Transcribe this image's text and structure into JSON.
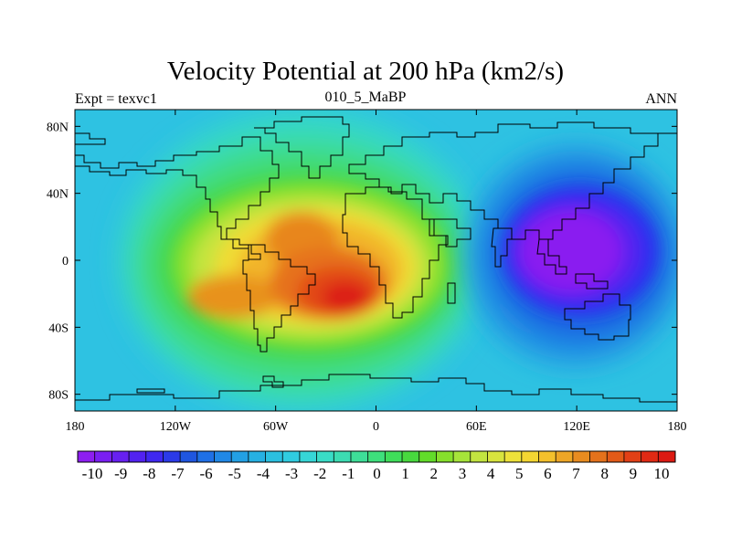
{
  "figure": {
    "title": "Velocity Potential at 200 hPa (km2/s)",
    "left_label": "Expt = texvc1",
    "center_label": "010_5_MaBP",
    "right_label": "ANN"
  },
  "map": {
    "projection": "cylindrical equidistant",
    "lon_range": [
      -180,
      180
    ],
    "lat_range": [
      -90,
      90
    ],
    "lon_ticks": [
      {
        "value": -180,
        "label": "180"
      },
      {
        "value": -120,
        "label": "120W"
      },
      {
        "value": -60,
        "label": "60W"
      },
      {
        "value": 0,
        "label": "0"
      },
      {
        "value": 60,
        "label": "60E"
      },
      {
        "value": 120,
        "label": "120E"
      },
      {
        "value": 180,
        "label": "180"
      }
    ],
    "lat_ticks": [
      {
        "value": 80,
        "label": "80N"
      },
      {
        "value": 40,
        "label": "40N"
      },
      {
        "value": 0,
        "label": "0"
      },
      {
        "value": -40,
        "label": "40S"
      },
      {
        "value": -80,
        "label": "80S"
      }
    ],
    "background_color": "#2ec2e2",
    "coastline_color": "#000000",
    "field": [
      {
        "kind": "max",
        "lon": -35,
        "lat": -15,
        "rx_deg": 60,
        "ry_deg": 30,
        "value": 10,
        "note": "primary maximum over tropical South America / Atlantic"
      },
      {
        "kind": "max",
        "lon": -100,
        "lat": -25,
        "rx_deg": 35,
        "ry_deg": 15,
        "value": 7
      },
      {
        "kind": "max",
        "lon": -75,
        "lat": 5,
        "rx_deg": 30,
        "ry_deg": 15,
        "value": 7
      },
      {
        "kind": "min",
        "lon": 125,
        "lat": 5,
        "rx_deg": 55,
        "ry_deg": 35,
        "value": -10,
        "note": "minimum over eastern hemisphere"
      }
    ]
  },
  "colorbar": {
    "labels": [
      "-10",
      "-9",
      "-8",
      "-7",
      "-6",
      "-5",
      "-4",
      "-3",
      "-2",
      "-1",
      "0",
      "1",
      "2",
      "3",
      "4",
      "5",
      "6",
      "7",
      "8",
      "9",
      "10"
    ],
    "colors": [
      "#8d1ef0",
      "#7a1ff2",
      "#6720f0",
      "#5222f0",
      "#3f28f0",
      "#2b3ae8",
      "#1f56e0",
      "#1f70e6",
      "#2188e6",
      "#23a0e4",
      "#26b0e2",
      "#2bc0e0",
      "#30cce0",
      "#36d6d6",
      "#39dcc6",
      "#3cdcb2",
      "#3ede98",
      "#3ee07c",
      "#3fde5a",
      "#48d83e",
      "#62dc2a",
      "#86e02c",
      "#a6e43a",
      "#c2e440",
      "#d8e43e",
      "#eee23a",
      "#f4d632",
      "#f4c02c",
      "#eea626",
      "#e88c20",
      "#e4721c",
      "#e25a18",
      "#e24016",
      "#e02a14",
      "#dc1a12"
    ]
  }
}
